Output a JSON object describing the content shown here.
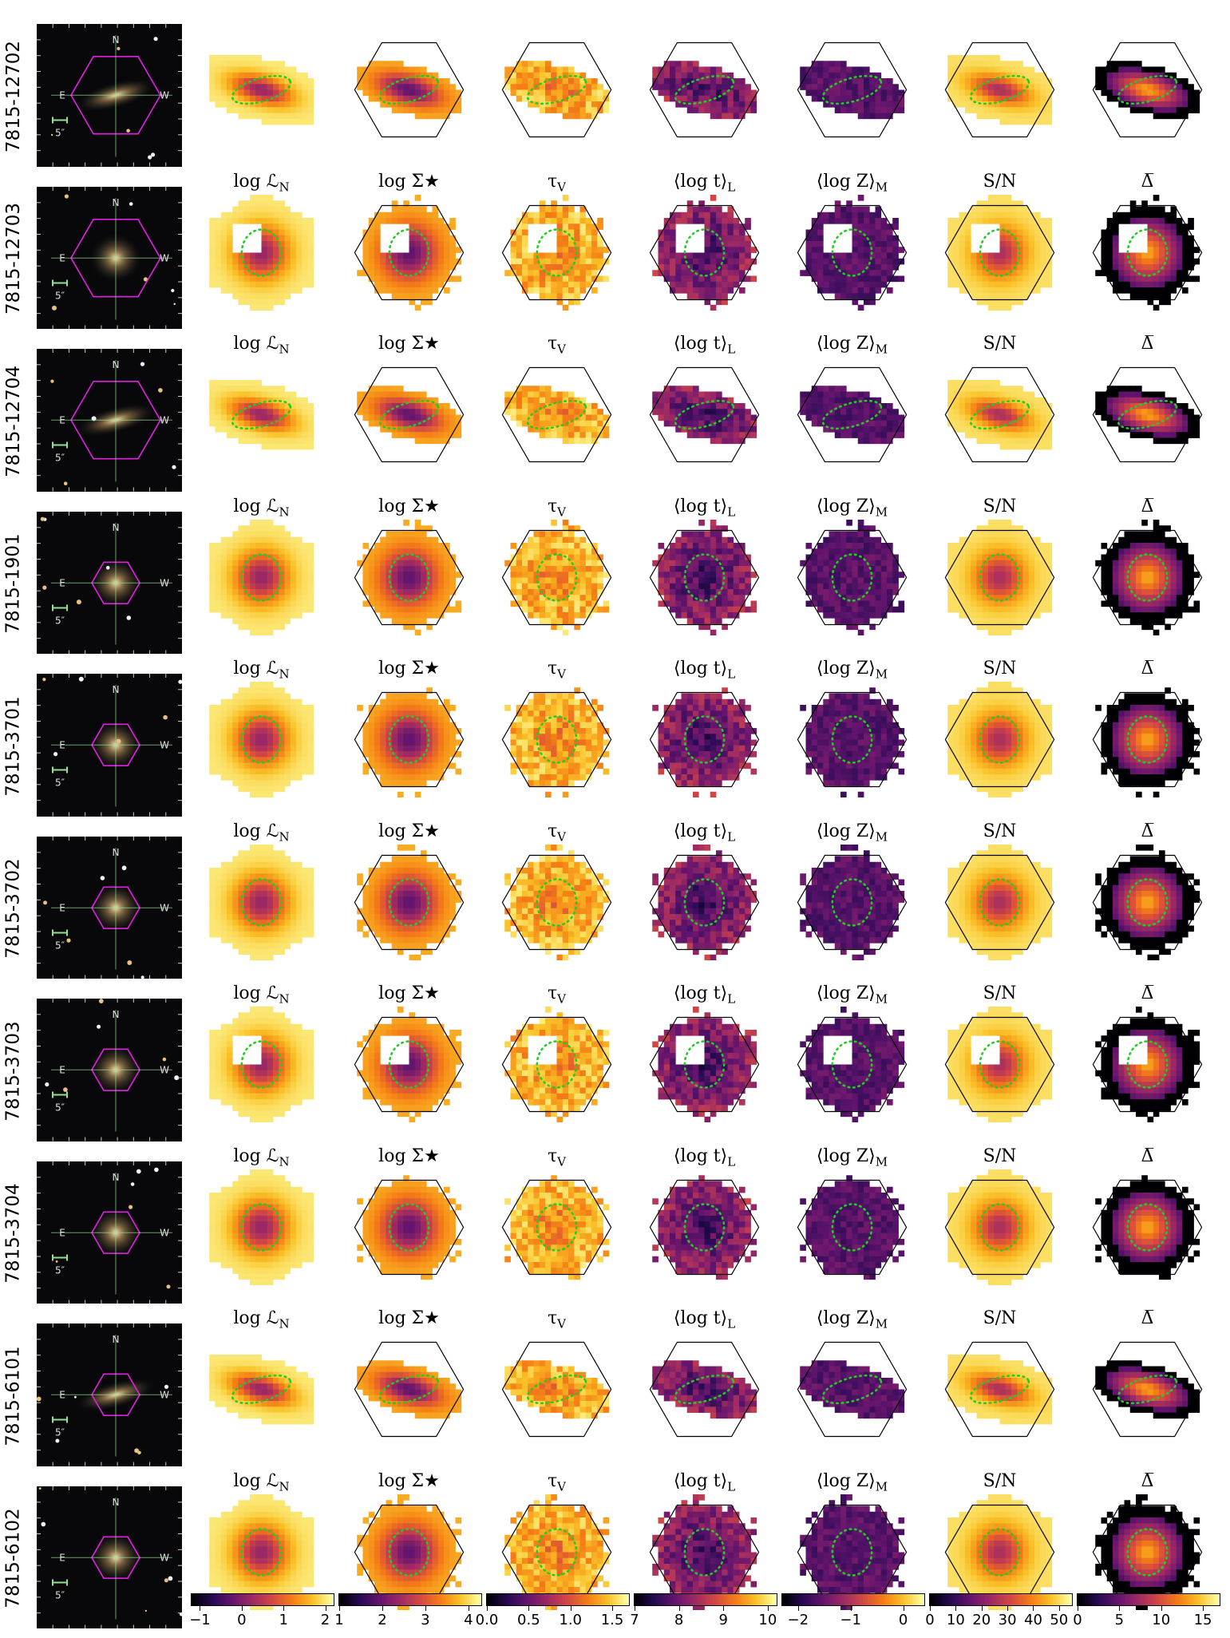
{
  "column_titles": [
    "log ℒ_N",
    "log Σ★",
    "τ_V",
    "⟨log t⟩_L",
    "⟨log Z⟩_M",
    "S/N",
    "Δ̅"
  ],
  "rows": [
    {
      "id": "7815-12702",
      "shape": "edge-ellipse"
    },
    {
      "id": "7815-12703",
      "shape": "round-hole"
    },
    {
      "id": "7815-12704",
      "shape": "edge-ellipse"
    },
    {
      "id": "7815-1901",
      "shape": "round-large"
    },
    {
      "id": "7815-3701",
      "shape": "round"
    },
    {
      "id": "7815-3702",
      "shape": "round-large"
    },
    {
      "id": "7815-3703",
      "shape": "round-hole"
    },
    {
      "id": "7815-3704",
      "shape": "round"
    },
    {
      "id": "7815-6101",
      "shape": "edge-ellipse"
    },
    {
      "id": "7815-6102",
      "shape": "round"
    }
  ],
  "sky_labels": {
    "north": "N",
    "east": "E",
    "west": "W",
    "scale": "5″"
  },
  "colorbars": [
    {
      "name": "logL",
      "ticks": [
        "−1",
        "0",
        "1",
        "2"
      ],
      "range": [
        -1.2,
        2.2
      ],
      "tick_values": [
        -1,
        0,
        1,
        2
      ],
      "reverse": false
    },
    {
      "name": "logSigma",
      "ticks": [
        "1",
        "2",
        "3",
        "4"
      ],
      "range": [
        1,
        4.3
      ],
      "tick_values": [
        1,
        2,
        3,
        4
      ],
      "reverse": false
    },
    {
      "name": "tauV",
      "ticks": [
        "0.0",
        "0.5",
        "1.0",
        "1.5"
      ],
      "range": [
        0,
        1.7
      ],
      "tick_values": [
        0,
        0.5,
        1.0,
        1.5
      ],
      "reverse": false
    },
    {
      "name": "logt",
      "ticks": [
        "7",
        "8",
        "9",
        "10"
      ],
      "range": [
        7,
        10.2
      ],
      "tick_values": [
        7,
        8,
        9,
        10
      ],
      "reverse": false
    },
    {
      "name": "logZ",
      "ticks": [
        "−2",
        "−1",
        "0"
      ],
      "range": [
        -2.3,
        0.4
      ],
      "tick_values": [
        -2,
        -1,
        0
      ],
      "reverse": false
    },
    {
      "name": "SN",
      "ticks": [
        "0",
        "10",
        "20",
        "30",
        "40",
        "50"
      ],
      "range": [
        0,
        55
      ],
      "tick_values": [
        0,
        10,
        20,
        30,
        40,
        50
      ],
      "reverse": true
    },
    {
      "name": "Delta",
      "ticks": [
        "0",
        "5",
        "10",
        "15"
      ],
      "range": [
        0,
        17
      ],
      "tick_values": [
        0,
        5,
        10,
        15
      ],
      "reverse": true
    }
  ],
  "colors": {
    "inferno_light": "#fcffa4",
    "inferno_mid": "#f98e09",
    "inferno_dark": "#57106e",
    "inferno_black": "#000004",
    "hexagon": "#e020e0",
    "ellipse": "#22cc22",
    "crosshair": "#90e090"
  }
}
